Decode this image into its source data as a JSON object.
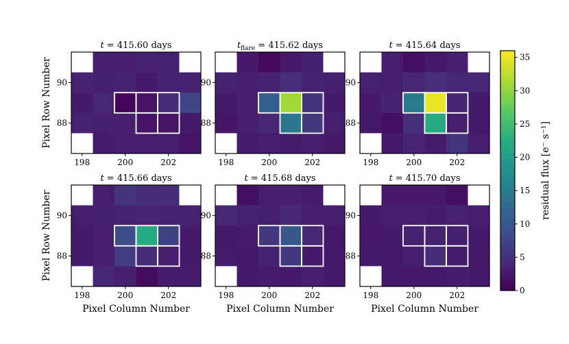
{
  "chart_data": {
    "type": "heatmap",
    "x_tick_labels": [
      "198",
      "200",
      "202"
    ],
    "x_ticks": [
      198,
      200,
      202
    ],
    "y_tick_labels": [
      "88",
      "90"
    ],
    "y_ticks": [
      88,
      90
    ],
    "x_range": [
      197.5,
      203.5
    ],
    "y_range": [
      86.5,
      91.5
    ],
    "xlabel": "Pixel Column Number",
    "ylabel": "Pixel Row Number",
    "colorbar": {
      "label": "residual flux [e⁻ s⁻¹]",
      "range": [
        0,
        36
      ],
      "tick_labels": [
        "0",
        "5",
        "10",
        "15",
        "20",
        "25",
        "30",
        "35"
      ],
      "ticks": [
        0,
        5,
        10,
        15,
        20,
        25,
        30,
        35
      ],
      "colormap": "viridis"
    },
    "aperture": [
      [
        200,
        89
      ],
      [
        201,
        89
      ],
      [
        202,
        89
      ],
      [
        201,
        88
      ],
      [
        202,
        88
      ]
    ],
    "panels": [
      {
        "title": "t = 415.60 days",
        "cells": [
          [
            null,
            3.2,
            3.0,
            3.6,
            3.4,
            null
          ],
          [
            3.5,
            3.2,
            3.6,
            2.6,
            3.6,
            3.4
          ],
          [
            2.6,
            4.0,
            0.5,
            2.0,
            4.5,
            7.5
          ],
          [
            3.5,
            3.2,
            3.0,
            2.0,
            2.0,
            2.6
          ],
          [
            null,
            2.8,
            3.0,
            3.2,
            3.0,
            2.0
          ]
        ]
      },
      {
        "title": "t_flare = 415.62 days",
        "title_main": "t",
        "title_sub": "flare",
        "title_rest": "= 415.62 days",
        "cells": [
          [
            null,
            2.5,
            0.8,
            2.5,
            3.2,
            null
          ],
          [
            3.3,
            3.0,
            3.5,
            5.0,
            3.6,
            3.2
          ],
          [
            2.6,
            3.2,
            11.0,
            31.0,
            5.5,
            2.6
          ],
          [
            2.3,
            3.0,
            4.0,
            14.5,
            6.0,
            3.0
          ],
          [
            null,
            2.8,
            3.0,
            2.8,
            3.0,
            2.5
          ]
        ]
      },
      {
        "title": "t = 415.64 days",
        "cells": [
          [
            null,
            3.0,
            1.5,
            2.5,
            3.2,
            null
          ],
          [
            3.3,
            3.0,
            4.0,
            5.0,
            4.0,
            4.0
          ],
          [
            2.5,
            3.5,
            15.0,
            35.0,
            3.8,
            2.6
          ],
          [
            2.6,
            1.6,
            5.0,
            22.0,
            3.0,
            2.6
          ],
          [
            null,
            2.6,
            3.8,
            2.8,
            5.5,
            3.0
          ]
        ]
      },
      {
        "title": "t = 415.66 days",
        "cells": [
          [
            null,
            3.0,
            5.5,
            4.5,
            4.5,
            null
          ],
          [
            3.0,
            3.2,
            3.6,
            3.8,
            3.6,
            3.4
          ],
          [
            2.6,
            3.0,
            8.5,
            22.0,
            7.0,
            2.6
          ],
          [
            2.6,
            3.2,
            6.5,
            4.5,
            3.0,
            2.6
          ],
          [
            null,
            4.0,
            3.2,
            1.0,
            2.8,
            2.8
          ]
        ]
      },
      {
        "title": "t = 415.68 days",
        "cells": [
          [
            null,
            1.6,
            3.0,
            3.0,
            2.8,
            null
          ],
          [
            4.0,
            3.6,
            3.2,
            4.0,
            3.0,
            3.2
          ],
          [
            2.6,
            2.8,
            6.0,
            10.0,
            4.0,
            2.4
          ],
          [
            2.8,
            2.5,
            3.5,
            6.0,
            2.6,
            2.6
          ],
          [
            null,
            2.6,
            2.8,
            2.4,
            3.0,
            2.6
          ]
        ]
      },
      {
        "title": "t = 415.70 days",
        "cells": [
          [
            null,
            2.4,
            2.4,
            2.4,
            1.6,
            null
          ],
          [
            2.6,
            3.0,
            3.2,
            2.8,
            3.6,
            3.0
          ],
          [
            2.4,
            2.6,
            3.4,
            3.6,
            3.2,
            2.6
          ],
          [
            2.6,
            2.4,
            3.2,
            4.5,
            2.8,
            2.4
          ],
          [
            null,
            2.6,
            2.4,
            2.6,
            2.8,
            2.6
          ]
        ]
      }
    ]
  }
}
